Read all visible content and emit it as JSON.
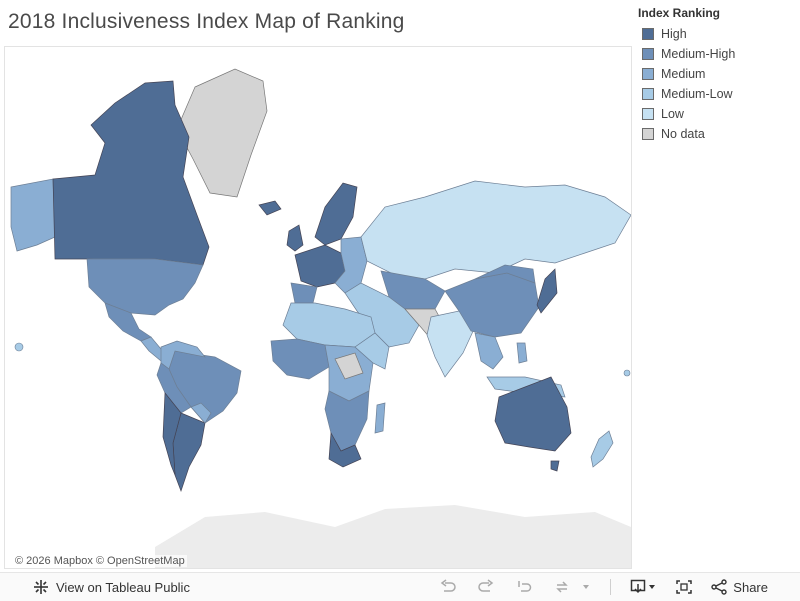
{
  "title": "2018 Inclusiveness Index Map of Ranking",
  "legend": {
    "title": "Index Ranking",
    "items": [
      {
        "label": "High",
        "color": "#4f6d95"
      },
      {
        "label": "Medium-High",
        "color": "#6e8fb8"
      },
      {
        "label": "Medium",
        "color": "#8aaed3"
      },
      {
        "label": "Medium-Low",
        "color": "#a7cbe6"
      },
      {
        "label": "Low",
        "color": "#c6e1f2"
      },
      {
        "label": "No data",
        "color": "#d4d4d4"
      }
    ]
  },
  "colors": {
    "land": "#ececec",
    "border": "#6d7f95"
  },
  "map": {
    "attribution": "© 2026 Mapbox  © OpenStreetMap"
  },
  "toolbar": {
    "view_label": "View on Tableau Public",
    "share_label": "Share",
    "icons": [
      "undo-icon",
      "redo-icon",
      "revert-icon",
      "refresh-icon",
      "pause-icon",
      "download-icon",
      "fullscreen-icon",
      "share-icon"
    ]
  }
}
